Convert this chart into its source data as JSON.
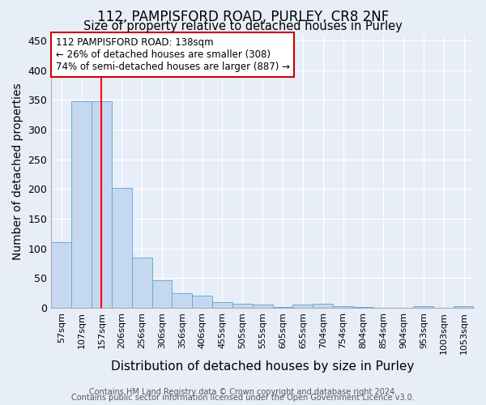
{
  "title1": "112, PAMPISFORD ROAD, PURLEY, CR8 2NF",
  "title2": "Size of property relative to detached houses in Purley",
  "xlabel": "Distribution of detached houses by size in Purley",
  "ylabel": "Number of detached properties",
  "footnote1": "Contains HM Land Registry data © Crown copyright and database right 2024.",
  "footnote2": "Contains public sector information licensed under the Open Government Licence v3.0.",
  "categories": [
    "57sqm",
    "107sqm",
    "157sqm",
    "206sqm",
    "256sqm",
    "306sqm",
    "356sqm",
    "406sqm",
    "455sqm",
    "505sqm",
    "555sqm",
    "605sqm",
    "655sqm",
    "704sqm",
    "754sqm",
    "804sqm",
    "854sqm",
    "904sqm",
    "953sqm",
    "1003sqm",
    "1053sqm"
  ],
  "values": [
    110,
    348,
    347,
    202,
    84,
    47,
    25,
    21,
    10,
    7,
    6,
    2,
    5,
    7,
    3,
    1,
    0,
    0,
    3,
    0,
    3
  ],
  "bar_color": "#c5d8f0",
  "bar_edge_color": "#6aaad4",
  "red_line_index": 2,
  "annotation_line1": "112 PAMPISFORD ROAD: 138sqm",
  "annotation_line2": "← 26% of detached houses are smaller (308)",
  "annotation_line3": "74% of semi-detached houses are larger (887) →",
  "annotation_box_color": "#ffffff",
  "annotation_box_edge": "#cc0000",
  "ylim": [
    0,
    460
  ],
  "yticks": [
    0,
    50,
    100,
    150,
    200,
    250,
    300,
    350,
    400,
    450
  ],
  "background_color": "#e8eef8",
  "grid_color": "#ffffff",
  "title1_fontsize": 12,
  "title2_fontsize": 10.5,
  "axis_label_fontsize": 10,
  "tick_fontsize": 8,
  "footnote_fontsize": 7
}
